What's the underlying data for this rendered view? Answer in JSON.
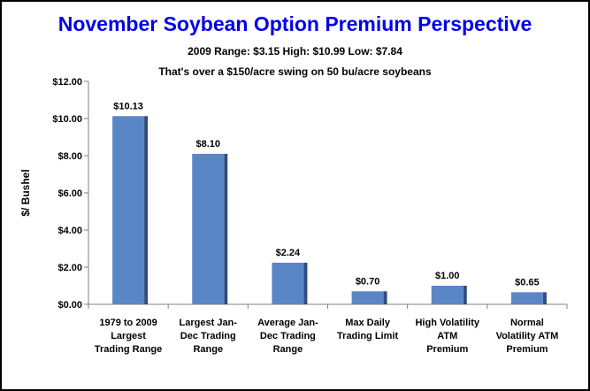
{
  "chart_data": {
    "type": "bar",
    "title": "November Soybean Option Premium Perspective",
    "subtitle_1": "2009 Range: $3.15   High: $10.99   Low: $7.84",
    "subtitle_2": "That's over a $150/acre  swing on 50 bu/acre soybeans",
    "ylabel": "$/ Bushel",
    "xlabel": "",
    "ylim": [
      0,
      12
    ],
    "yticks": [
      "$0.00",
      "$2.00",
      "$4.00",
      "$6.00",
      "$8.00",
      "$10.00",
      "$12.00"
    ],
    "categories": [
      [
        "1979 to 2009",
        "Largest",
        "Trading Range"
      ],
      [
        "Largest Jan-",
        "Dec Trading",
        "Range"
      ],
      [
        "Average Jan-",
        "Dec Trading",
        "Range"
      ],
      [
        "Max Daily",
        "Trading Limit"
      ],
      [
        "High Volatility",
        "ATM",
        "Premium"
      ],
      [
        "Normal",
        "Volatility ATM",
        "Premium"
      ]
    ],
    "values": [
      10.13,
      8.1,
      2.24,
      0.7,
      1.0,
      0.65
    ],
    "data_labels": [
      "$10.13",
      "$8.10",
      "$2.24",
      "$0.70",
      "$1.00",
      "$0.65"
    ],
    "bar_color": "#5b86c6",
    "bar_side_color": "#2f4d7e",
    "grid": false,
    "legend": "none"
  }
}
